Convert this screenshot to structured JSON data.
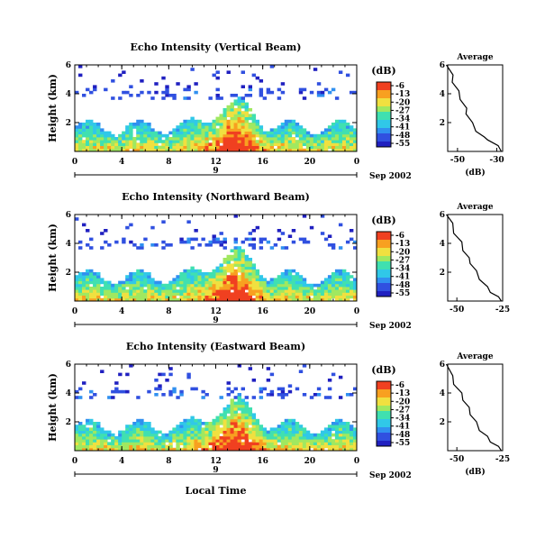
{
  "chart_data": [
    {
      "type": "heatmap",
      "title": "Echo Intensity (Vertical Beam)",
      "ylabel": "Height (km)",
      "xlabel": "",
      "xlim": [
        0,
        24
      ],
      "ylim": [
        0,
        6
      ],
      "x_ticks": [
        "0",
        "4",
        "8",
        "12",
        "16",
        "20",
        "0"
      ],
      "y_ticks": [
        "2",
        "4",
        "6"
      ],
      "date_marker": "9",
      "date_label": "Sep 2002",
      "colorbar": {
        "unit": "(dB)",
        "ticks": [
          "-6",
          "-13",
          "-20",
          "-27",
          "-34",
          "-41",
          "-48",
          "-55"
        ]
      },
      "average": {
        "title": "Average",
        "xlabel": "(dB)",
        "x_ticks": [
          "-50",
          "-30"
        ],
        "xlim": [
          -55,
          -27
        ],
        "y_ticks": [
          "2",
          "4",
          "6"
        ],
        "profile": [
          [
            -27,
            0
          ],
          [
            -30,
            0.4
          ],
          [
            -34,
            0.8
          ],
          [
            -37,
            1.0
          ],
          [
            -40,
            1.4
          ],
          [
            -43,
            2.0
          ],
          [
            -45,
            2.6
          ],
          [
            -46,
            3.0
          ],
          [
            -48,
            3.6
          ],
          [
            -50,
            4.2
          ],
          [
            -52,
            4.8
          ],
          [
            -53,
            5.3
          ],
          [
            -55,
            6.0
          ]
        ]
      }
    },
    {
      "type": "heatmap",
      "title": "Echo Intensity (Northward Beam)",
      "ylabel": "Height (km)",
      "xlabel": "",
      "xlim": [
        0,
        24
      ],
      "ylim": [
        0,
        6
      ],
      "x_ticks": [
        "0",
        "4",
        "8",
        "12",
        "16",
        "20",
        "0"
      ],
      "y_ticks": [
        "2",
        "4",
        "6"
      ],
      "date_marker": "9",
      "date_label": "Sep 2002",
      "colorbar": {
        "unit": "(dB)",
        "ticks": [
          "-6",
          "-13",
          "-20",
          "-27",
          "-34",
          "-41",
          "-48",
          "-55"
        ]
      },
      "average": {
        "title": "Average",
        "xlabel": "",
        "x_ticks": [
          "-50",
          "-25"
        ],
        "xlim": [
          -55,
          -25
        ],
        "y_ticks": [
          "2",
          "4",
          "6"
        ],
        "profile": [
          [
            -25,
            0
          ],
          [
            -28,
            0.3
          ],
          [
            -31,
            0.6
          ],
          [
            -34,
            1.0
          ],
          [
            -37,
            1.5
          ],
          [
            -40,
            2.1
          ],
          [
            -42,
            2.6
          ],
          [
            -44,
            3.0
          ],
          [
            -46,
            3.5
          ],
          [
            -48,
            4.1
          ],
          [
            -51,
            4.7
          ],
          [
            -53,
            5.4
          ],
          [
            -55,
            6.0
          ]
        ]
      }
    },
    {
      "type": "heatmap",
      "title": "Echo Intensity (Eastward Beam)",
      "ylabel": "Height (km)",
      "xlabel": "Local Time",
      "xlim": [
        0,
        24
      ],
      "ylim": [
        0,
        6
      ],
      "x_ticks": [
        "0",
        "4",
        "8",
        "12",
        "16",
        "20",
        "0"
      ],
      "y_ticks": [
        "2",
        "4",
        "6"
      ],
      "date_marker": "9",
      "date_label": "Sep 2002",
      "colorbar": {
        "unit": "(dB)",
        "ticks": [
          "-6",
          "-13",
          "-20",
          "-27",
          "-34",
          "-41",
          "-48",
          "-55"
        ]
      },
      "average": {
        "title": "Average",
        "xlabel": "(dB)",
        "x_ticks": [
          "-50",
          "-25"
        ],
        "xlim": [
          -55,
          -25
        ],
        "y_ticks": [
          "2",
          "4",
          "6"
        ],
        "profile": [
          [
            -25,
            0
          ],
          [
            -28,
            0.3
          ],
          [
            -31,
            0.6
          ],
          [
            -34,
            1.0
          ],
          [
            -37,
            1.4
          ],
          [
            -40,
            2.0
          ],
          [
            -42,
            2.5
          ],
          [
            -44,
            3.0
          ],
          [
            -46,
            3.5
          ],
          [
            -48,
            4.0
          ],
          [
            -51,
            4.6
          ],
          [
            -53,
            5.2
          ],
          [
            -55,
            6.0
          ]
        ]
      }
    }
  ],
  "colors": {
    "palette": [
      "#2020c0",
      "#3050e0",
      "#3090f0",
      "#30c8e8",
      "#40e0b0",
      "#a0e860",
      "#f0e040",
      "#f8a020",
      "#f04020"
    ]
  }
}
